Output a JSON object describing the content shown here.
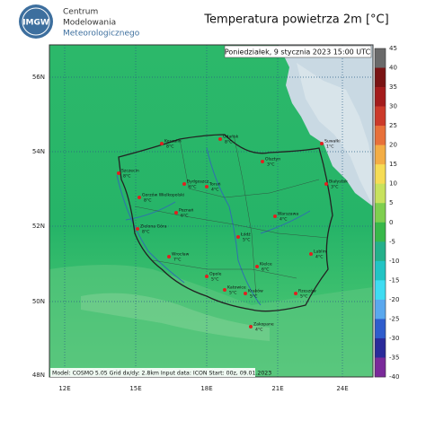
{
  "logo": {
    "abbr": "IMGW",
    "lines": [
      "Centrum",
      "Modelowania",
      "Meteorologicznego"
    ]
  },
  "title": "Temperatura powietrza 2m [°C]",
  "datetime": "Poniedziałek, 9 stycznia 2023 15:00 UTC",
  "footer": "Model: COSMO 5.05  Grid dx/dy: 2.8km  Input data: ICON  Start: 00z, 09.01.2023",
  "lat_labels": [
    "56N",
    "54N",
    "52N",
    "50N",
    "48N"
  ],
  "lon_labels": [
    "12E",
    "15E",
    "18E",
    "21E",
    "24E"
  ],
  "colorbar": {
    "labels": [
      "45",
      "40",
      "35",
      "30",
      "25",
      "20",
      "15",
      "10",
      "5",
      "0",
      "-5",
      "-10",
      "-15",
      "-20",
      "-25",
      "-30",
      "-35",
      "-40"
    ],
    "colors": [
      "#6a6a6a",
      "#7a1414",
      "#a41c1c",
      "#cc3a2a",
      "#e8713a",
      "#f3ad45",
      "#f6dc55",
      "#c8e25e",
      "#7fcf4f",
      "#38b84a",
      "#24b08a",
      "#22c4c4",
      "#3fdcf2",
      "#5aa8ee",
      "#2f5ccc",
      "#2a2a9a",
      "#7a2a9a"
    ]
  },
  "cities": [
    {
      "name": "Koszalin",
      "temp": "8°C"
    },
    {
      "name": "Gdańsk",
      "temp": "8°C"
    },
    {
      "name": "Suwałki",
      "temp": "1°C"
    },
    {
      "name": "Olsztyn",
      "temp": "3°C"
    },
    {
      "name": "Szczecin",
      "temp": "8°C"
    },
    {
      "name": "Białystok",
      "temp": "3°C"
    },
    {
      "name": "Gorzów Wielkopolski",
      "temp": "8°C"
    },
    {
      "name": "Bydgoszcz",
      "temp": "6°C"
    },
    {
      "name": "Toruń",
      "temp": "4°C"
    },
    {
      "name": "Poznań",
      "temp": "6°C"
    },
    {
      "name": "Warszawa",
      "temp": "4°C"
    },
    {
      "name": "Zielona Góra",
      "temp": "8°C"
    },
    {
      "name": "Łódź",
      "temp": "5°C"
    },
    {
      "name": "Lublin",
      "temp": "4°C"
    },
    {
      "name": "Wrocław",
      "temp": "7°C"
    },
    {
      "name": "Kielce",
      "temp": "6°C"
    },
    {
      "name": "Opole",
      "temp": "5°C"
    },
    {
      "name": "Katowice",
      "temp": "5°C"
    },
    {
      "name": "Kraków",
      "temp": "5°C"
    },
    {
      "name": "Rzeszów",
      "temp": "5°C"
    },
    {
      "name": "Zakopane",
      "temp": "4°C"
    }
  ]
}
